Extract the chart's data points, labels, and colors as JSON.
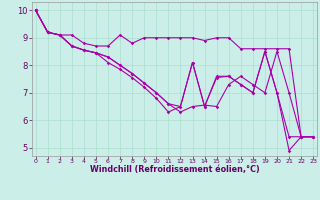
{
  "xlabel": "Windchill (Refroidissement éolien,°C)",
  "xlim_min": 0,
  "xlim_max": 23,
  "ylim_min": 4.7,
  "ylim_max": 10.3,
  "yticks": [
    5,
    6,
    7,
    8,
    9,
    10
  ],
  "xticks": [
    0,
    1,
    2,
    3,
    4,
    5,
    6,
    7,
    8,
    9,
    10,
    11,
    12,
    13,
    14,
    15,
    16,
    17,
    18,
    19,
    20,
    21,
    22,
    23
  ],
  "line_color": "#aa00aa",
  "bg_color": "#cceee8",
  "grid_color": "#aaddcc",
  "lines": [
    {
      "y": [
        10.0,
        9.2,
        9.1,
        9.1,
        8.8,
        8.7,
        8.7,
        9.1,
        8.8,
        9.0,
        9.0,
        9.0,
        9.0,
        9.0,
        8.9,
        9.0,
        9.0,
        8.6,
        8.6,
        8.6,
        8.6,
        8.6,
        5.4,
        5.4
      ]
    },
    {
      "y": [
        10.0,
        9.2,
        9.1,
        8.7,
        8.55,
        8.45,
        8.3,
        8.0,
        7.7,
        7.35,
        7.0,
        6.6,
        6.3,
        6.5,
        6.55,
        6.5,
        7.3,
        7.6,
        7.3,
        7.0,
        8.5,
        7.0,
        5.4,
        5.4
      ]
    },
    {
      "y": [
        10.0,
        9.2,
        9.1,
        8.7,
        8.55,
        8.45,
        8.3,
        8.0,
        7.7,
        7.35,
        7.0,
        6.6,
        6.5,
        8.1,
        6.5,
        7.6,
        7.6,
        7.3,
        7.0,
        8.5,
        7.0,
        4.9,
        5.4,
        5.4
      ]
    },
    {
      "y": [
        10.0,
        9.2,
        9.1,
        8.7,
        8.55,
        8.45,
        8.1,
        7.85,
        7.55,
        7.2,
        6.8,
        6.3,
        6.5,
        8.1,
        6.5,
        7.55,
        7.6,
        7.3,
        7.0,
        8.5,
        7.0,
        5.4,
        5.4,
        5.4
      ]
    }
  ]
}
